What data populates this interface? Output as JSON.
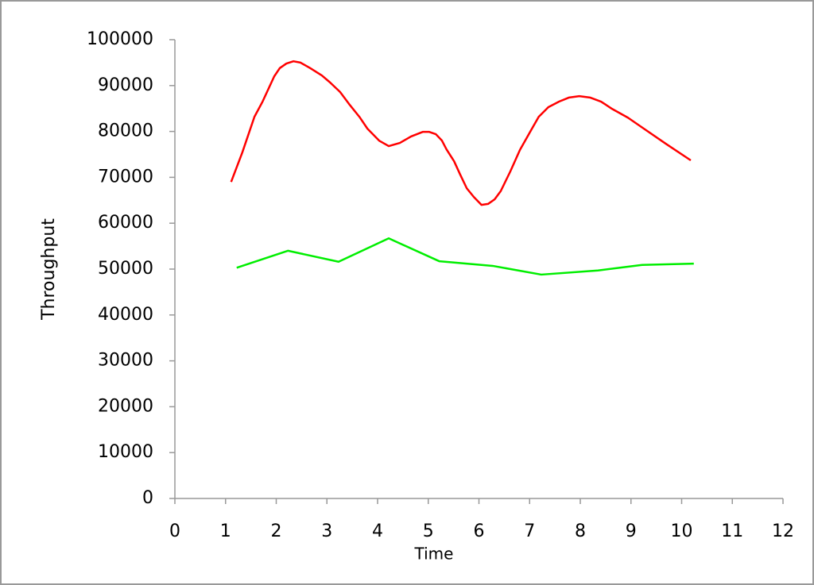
{
  "chart_data": {
    "type": "line",
    "xlabel": "Time",
    "ylabel": "Throughput",
    "xlim": [
      0,
      12
    ],
    "xticks": [
      0,
      1,
      2,
      3,
      4,
      5,
      6,
      7,
      8,
      9,
      10,
      11,
      12
    ],
    "ylim": [
      0,
      100000
    ],
    "yticks": [
      0,
      10000,
      20000,
      30000,
      40000,
      50000,
      60000,
      70000,
      80000,
      90000,
      100000
    ],
    "series": [
      {
        "color": "#ff0000",
        "x": [
          1.11,
          1.33,
          1.57,
          1.73,
          1.96,
          2.07,
          2.2,
          2.34,
          2.48,
          2.67,
          2.9,
          3.06,
          3.26,
          3.45,
          3.64,
          3.8,
          4.03,
          4.22,
          4.44,
          4.66,
          4.89,
          5.02,
          5.15,
          5.27,
          5.36,
          5.51,
          5.63,
          5.76,
          5.9,
          6.05,
          6.18,
          6.31,
          6.43,
          6.62,
          6.81,
          7.03,
          7.18,
          7.37,
          7.58,
          7.78,
          7.98,
          8.19,
          8.41,
          8.63,
          8.94,
          9.19,
          9.69,
          10.18
        ],
        "values": [
          69000,
          75400,
          83200,
          86500,
          92000,
          93800,
          94800,
          95300,
          95000,
          93800,
          92200,
          90700,
          88600,
          85800,
          83200,
          80600,
          78000,
          76800,
          77500,
          78900,
          79900,
          79900,
          79400,
          78000,
          76100,
          73500,
          70600,
          67600,
          65700,
          64000,
          64200,
          65200,
          67000,
          71300,
          76000,
          80300,
          83200,
          85300,
          86500,
          87400,
          87700,
          87400,
          86500,
          84900,
          83000,
          81100,
          77300,
          73700
        ]
      },
      {
        "color": "#00ee00",
        "x": [
          1.22,
          2.23,
          3.23,
          4.22,
          5.22,
          6.27,
          7.23,
          8.35,
          9.22,
          10.24
        ],
        "values": [
          50300,
          54000,
          51600,
          56700,
          51700,
          50700,
          48800,
          49700,
          50900,
          51200
        ]
      }
    ]
  }
}
